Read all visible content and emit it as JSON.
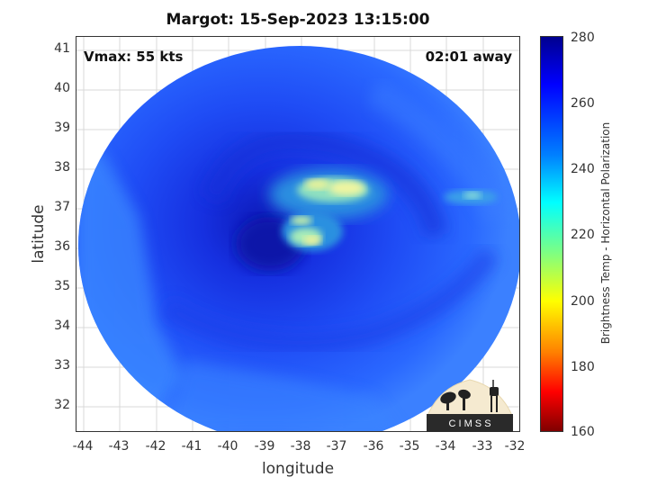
{
  "title": "Margot: 15-Sep-2023 13:15:00",
  "vmax_label": "Vmax: 55 kts",
  "time_away_label": "02:01 away",
  "axes": {
    "xlabel": "longitude",
    "ylabel": "latitude",
    "xticks": [
      "-44",
      "-43",
      "-42",
      "-41",
      "-40",
      "-39",
      "-38",
      "-37",
      "-36",
      "-35",
      "-34",
      "-33",
      "-32"
    ],
    "yticks": [
      "41",
      "40",
      "39",
      "38",
      "37",
      "36",
      "35",
      "34",
      "33",
      "32"
    ],
    "xlim": [
      -44.25,
      -32.0
    ],
    "ylim": [
      31.35,
      41.35
    ]
  },
  "colorbar": {
    "label": "Brightness Temp - Horizontal Polarization",
    "ticks": [
      "280",
      "260",
      "240",
      "220",
      "200",
      "180",
      "160"
    ],
    "range": [
      160,
      280
    ]
  },
  "logo": {
    "text": "C I M S S"
  },
  "colors": {
    "background_field": "#2a68ff",
    "eye_dark": "#0a18b0",
    "convection_bright": "#f0f5a0"
  }
}
